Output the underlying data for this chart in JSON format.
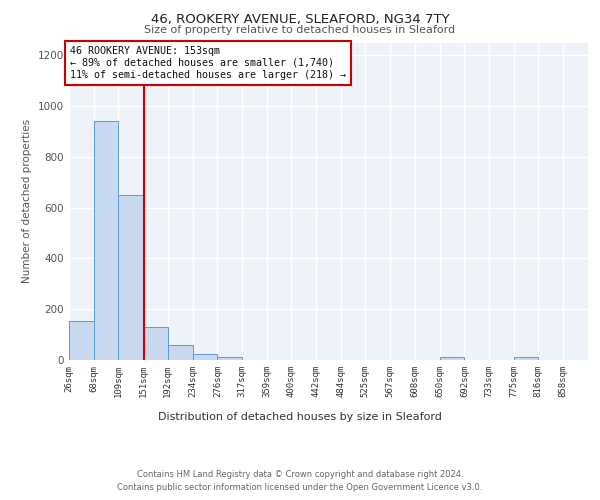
{
  "title1": "46, ROOKERY AVENUE, SLEAFORD, NG34 7TY",
  "title2": "Size of property relative to detached houses in Sleaford",
  "xlabel": "Distribution of detached houses by size in Sleaford",
  "ylabel": "Number of detached properties",
  "bin_labels": [
    "26sqm",
    "68sqm",
    "109sqm",
    "151sqm",
    "192sqm",
    "234sqm",
    "276sqm",
    "317sqm",
    "359sqm",
    "400sqm",
    "442sqm",
    "484sqm",
    "525sqm",
    "567sqm",
    "608sqm",
    "650sqm",
    "692sqm",
    "733sqm",
    "775sqm",
    "816sqm",
    "858sqm"
  ],
  "bar_values": [
    155,
    940,
    650,
    130,
    60,
    25,
    12,
    0,
    0,
    0,
    0,
    0,
    0,
    0,
    0,
    10,
    0,
    0,
    10,
    0,
    0
  ],
  "bar_color": "#c8d9ef",
  "bar_edge_color": "#5b9bd5",
  "property_line_x": 153,
  "property_line_color": "#cc0000",
  "annotation_line1": "46 ROOKERY AVENUE: 153sqm",
  "annotation_line2": "← 89% of detached houses are smaller (1,740)",
  "annotation_line3": "11% of semi-detached houses are larger (218) →",
  "annotation_box_color": "#ffffff",
  "annotation_box_edge": "#cc0000",
  "footer1": "Contains HM Land Registry data © Crown copyright and database right 2024.",
  "footer2": "Contains public sector information licensed under the Open Government Licence v3.0.",
  "ylim": [
    0,
    1250
  ],
  "yticks": [
    0,
    200,
    400,
    600,
    800,
    1000,
    1200
  ],
  "bg_color": "#eef2f9",
  "grid_color": "#ffffff",
  "bin_edges": [
    26,
    68,
    109,
    151,
    192,
    234,
    276,
    317,
    359,
    400,
    442,
    484,
    525,
    567,
    608,
    650,
    692,
    733,
    775,
    816,
    858,
    900
  ]
}
